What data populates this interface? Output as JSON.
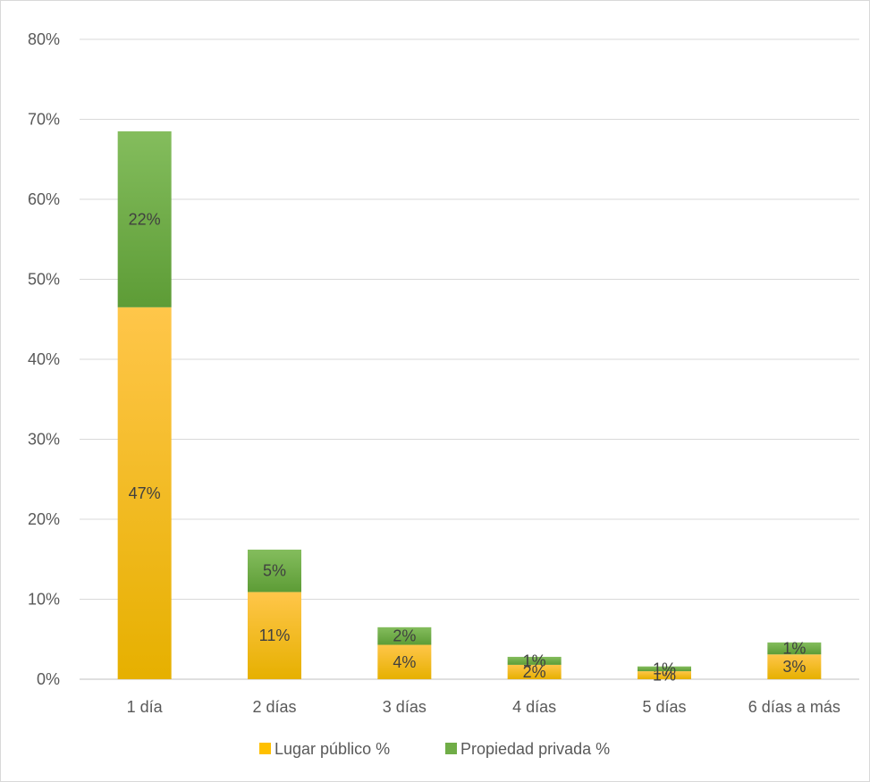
{
  "chart_data": {
    "type": "bar",
    "stacked": true,
    "categories": [
      "1 día",
      "2 días",
      "3 días",
      "4 días",
      "5 días",
      "6 días a más"
    ],
    "series": [
      {
        "name": "Lugar público %",
        "color": "#FFC000",
        "values": [
          0.465,
          0.109,
          0.043,
          0.018,
          0.01,
          0.031
        ],
        "labels": [
          "47%",
          "11%",
          "4%",
          "2%",
          "1%",
          "3%"
        ]
      },
      {
        "name": "Propiedad privada %",
        "color": "#70AD47",
        "values": [
          0.22,
          0.053,
          0.022,
          0.01,
          0.006,
          0.015
        ],
        "labels": [
          "22%",
          "5%",
          "2%",
          "1%",
          "1%",
          "1%"
        ]
      }
    ],
    "ylim": [
      0,
      0.8
    ],
    "yticks": [
      "0%",
      "10%",
      "20%",
      "30%",
      "40%",
      "50%",
      "60%",
      "70%",
      "80%"
    ],
    "title": "",
    "xlabel": "",
    "ylabel": "",
    "grid": true,
    "legend_position": "bottom"
  }
}
